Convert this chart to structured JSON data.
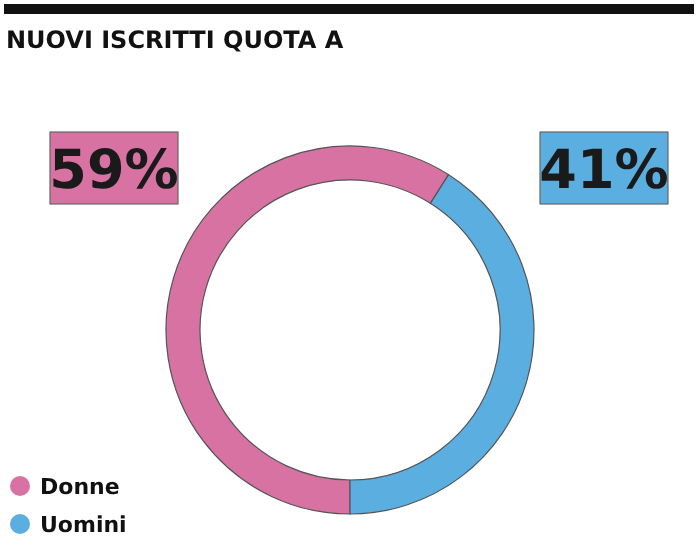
{
  "chart_data": {
    "type": "donut",
    "title": "NUOVI ISCRITTI QUOTA A",
    "categories": [
      "Donne",
      "Uomini"
    ],
    "values": [
      59,
      41
    ],
    "colors": [
      "#d872a3",
      "#5aaee0"
    ],
    "value_labels": [
      "59%",
      "41%"
    ],
    "legend": "bottom left"
  }
}
